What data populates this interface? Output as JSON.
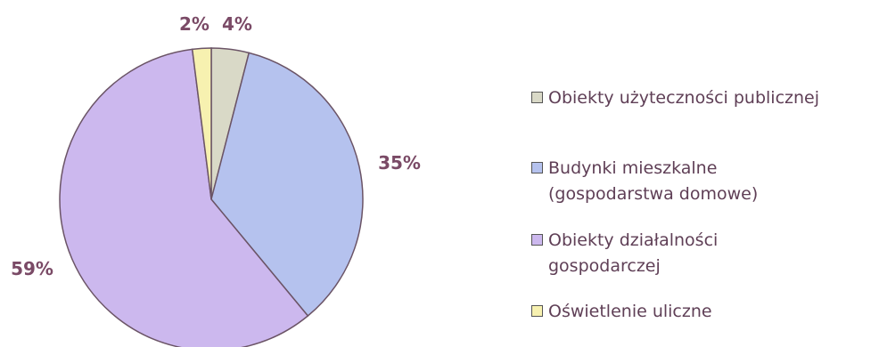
{
  "chart_data": {
    "type": "pie",
    "slices": [
      {
        "label": "Obiekty użyteczności publicznej",
        "value": 4,
        "value_label": "4%",
        "color": "#d9d9c7"
      },
      {
        "label": "Budynki mieszkalne\n(gospodarstwa domowe)",
        "value": 35,
        "value_label": "35%",
        "color": "#b5c2ee"
      },
      {
        "label": "Obiekty działalności\ngospodarczej",
        "value": 59,
        "value_label": "59%",
        "color": "#ccb8ee"
      },
      {
        "label": "Oświetlenie uliczne",
        "value": 2,
        "value_label": "2%",
        "color": "#f7f1b0"
      }
    ],
    "legend_placement": "right"
  },
  "colors": {
    "slice_stroke": "#6b5466",
    "label_text": "#7a4a66",
    "legend_text": "#5f3f56"
  }
}
